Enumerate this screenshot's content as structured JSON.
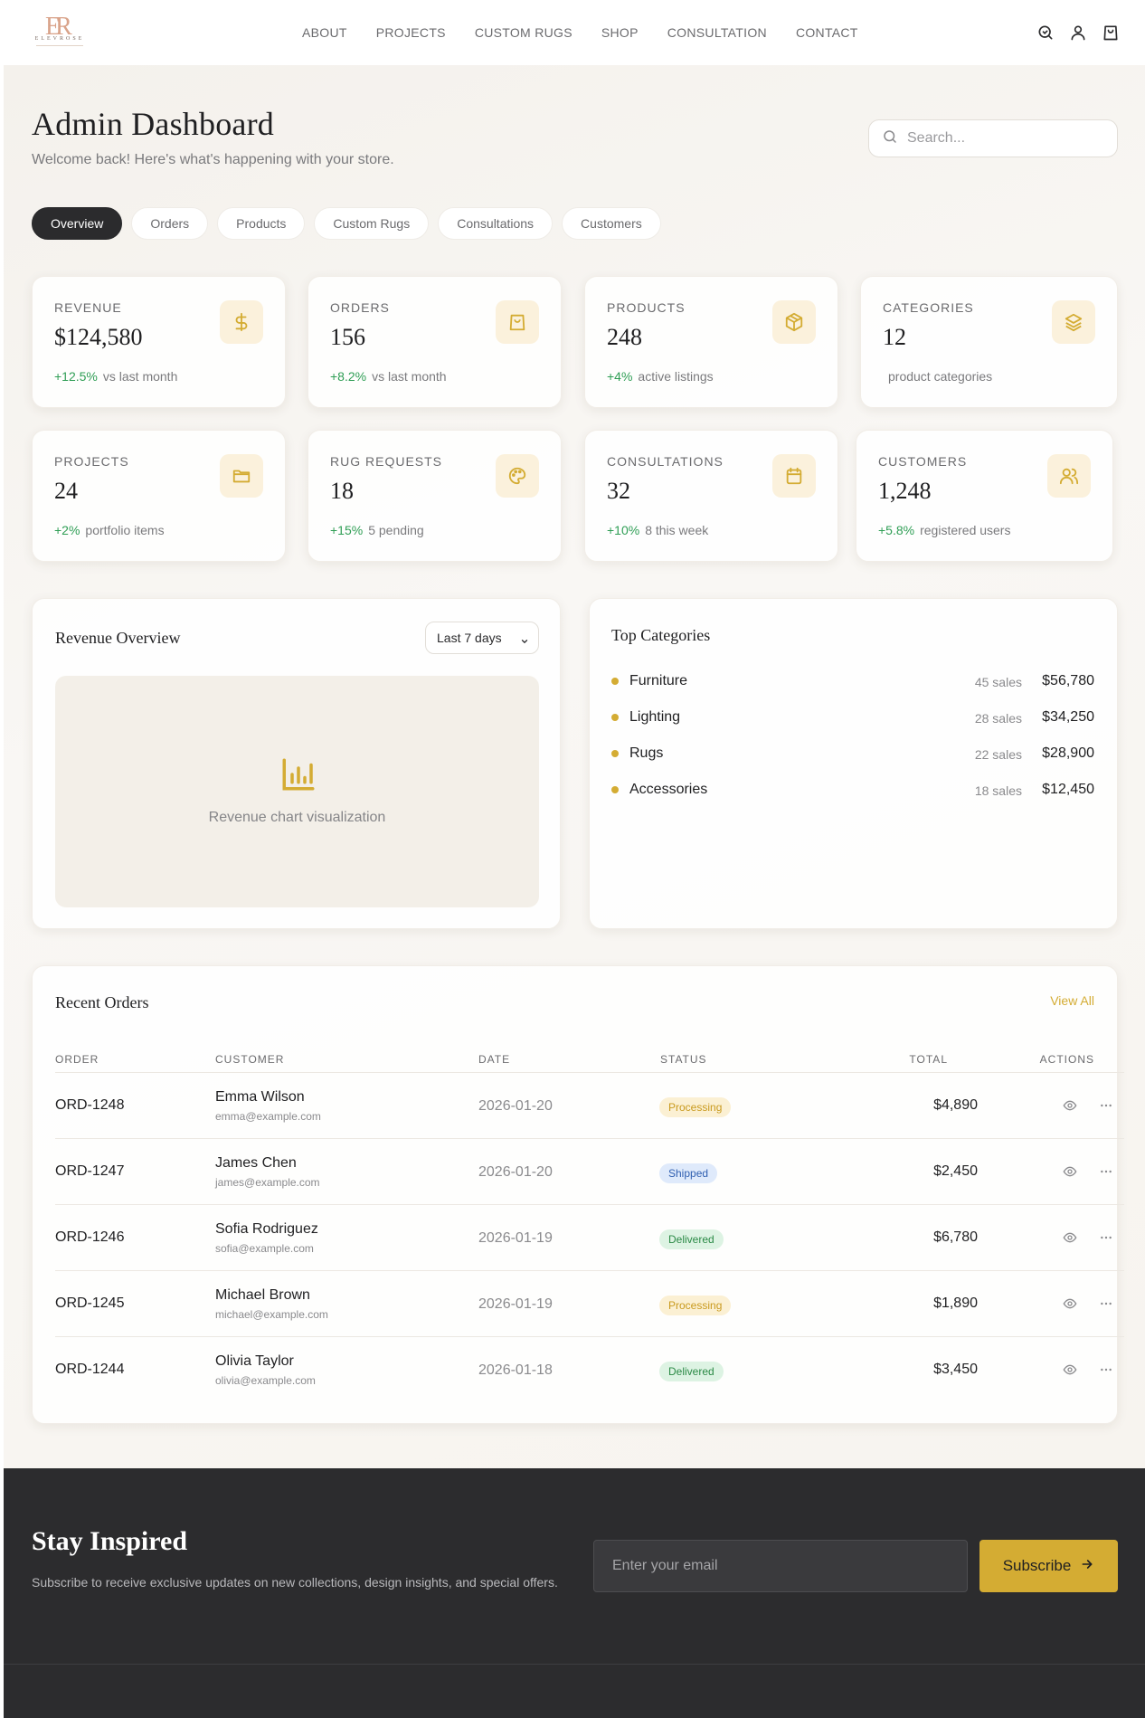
{
  "brand": {
    "logo_mark": "ER",
    "logo_word": "ELEVROSE"
  },
  "nav": {
    "items": [
      "ABOUT",
      "PROJECTS",
      "CUSTOM RUGS",
      "SHOP",
      "CONSULTATION",
      "CONTACT"
    ]
  },
  "header_icons": [
    "search-icon",
    "user-icon",
    "shopping-bag-icon"
  ],
  "page": {
    "title": "Admin Dashboard",
    "subtitle": "Welcome back! Here's what's happening with your store.",
    "search_placeholder": "Search..."
  },
  "tabs": [
    {
      "label": "Overview",
      "active": true
    },
    {
      "label": "Orders",
      "active": false
    },
    {
      "label": "Products",
      "active": false
    },
    {
      "label": "Custom Rugs",
      "active": false
    },
    {
      "label": "Consultations",
      "active": false
    },
    {
      "label": "Customers",
      "active": false
    }
  ],
  "stats": [
    {
      "label": "REVENUE",
      "value": "$124,580",
      "change": "+12.5%",
      "note": "vs last month",
      "icon": "dollar-icon"
    },
    {
      "label": "ORDERS",
      "value": "156",
      "change": "+8.2%",
      "note": "vs last month",
      "icon": "shopping-bag-icon"
    },
    {
      "label": "PRODUCTS",
      "value": "248",
      "change": "+4%",
      "note": "active listings",
      "icon": "package-icon"
    },
    {
      "label": "CATEGORIES",
      "value": "12",
      "change": "",
      "note": "product categories",
      "icon": "layers-icon"
    },
    {
      "label": "PROJECTS",
      "value": "24",
      "change": "+2%",
      "note": "portfolio items",
      "icon": "folder-icon"
    },
    {
      "label": "RUG REQUESTS",
      "value": "18",
      "change": "+15%",
      "note": "5 pending",
      "icon": "palette-icon"
    },
    {
      "label": "CONSULTATIONS",
      "value": "32",
      "change": "+10%",
      "note": "8 this week",
      "icon": "calendar-icon"
    },
    {
      "label": "CUSTOMERS",
      "value": "1,248",
      "change": "+5.8%",
      "note": "registered users",
      "icon": "users-icon"
    }
  ],
  "revenue_overview": {
    "title": "Revenue Overview",
    "range": "Last 7 days",
    "placeholder": "Revenue chart visualization"
  },
  "top_categories": {
    "title": "Top Categories",
    "items": [
      {
        "name": "Furniture",
        "sales": "45 sales",
        "amount": "$56,780"
      },
      {
        "name": "Lighting",
        "sales": "28 sales",
        "amount": "$34,250"
      },
      {
        "name": "Rugs",
        "sales": "22 sales",
        "amount": "$28,900"
      },
      {
        "name": "Accessories",
        "sales": "18 sales",
        "amount": "$12,450"
      }
    ]
  },
  "recent_orders": {
    "title": "Recent Orders",
    "view_all": "View All",
    "columns": [
      "ORDER",
      "CUSTOMER",
      "DATE",
      "STATUS",
      "TOTAL",
      "ACTIONS"
    ],
    "rows": [
      {
        "id": "ORD-1248",
        "name": "Emma Wilson",
        "email": "emma@example.com",
        "date": "2026-01-20",
        "status": "Processing",
        "total": "$4,890"
      },
      {
        "id": "ORD-1247",
        "name": "James Chen",
        "email": "james@example.com",
        "date": "2026-01-20",
        "status": "Shipped",
        "total": "$2,450"
      },
      {
        "id": "ORD-1246",
        "name": "Sofia Rodriguez",
        "email": "sofia@example.com",
        "date": "2026-01-19",
        "status": "Delivered",
        "total": "$6,780"
      },
      {
        "id": "ORD-1245",
        "name": "Michael Brown",
        "email": "michael@example.com",
        "date": "2026-01-19",
        "status": "Processing",
        "total": "$1,890"
      },
      {
        "id": "ORD-1244",
        "name": "Olivia Taylor",
        "email": "olivia@example.com",
        "date": "2026-01-18",
        "status": "Delivered",
        "total": "$3,450"
      }
    ]
  },
  "footer": {
    "title": "Stay Inspired",
    "subtitle": "Subscribe to receive exclusive updates on new collections, design insights, and special offers.",
    "email_placeholder": "Enter your email",
    "subscribe_label": "Subscribe"
  },
  "colors": {
    "accent": "#d4ac33",
    "dark": "#2c2c2e",
    "positive": "#2f9e55"
  }
}
